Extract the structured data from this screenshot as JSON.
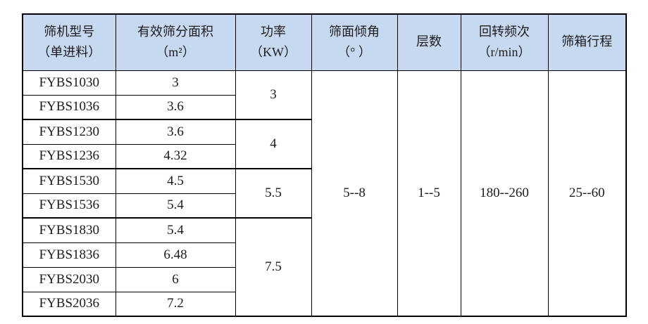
{
  "colors": {
    "header_bg": "#c6d9f0",
    "border": "#000000",
    "text": "#1c1c1c",
    "page_bg": "#ffffff"
  },
  "table": {
    "headers": [
      {
        "line1": "筛机型号",
        "line2": "（单进料）"
      },
      {
        "line1": "有效筛分面积",
        "line2": "（m²）"
      },
      {
        "line1": "功率",
        "line2": "（KW）"
      },
      {
        "line1": "筛面倾角",
        "line2": "（° ）"
      },
      {
        "line1": "层数",
        "line2": ""
      },
      {
        "line1": "回转频次",
        "line2": "（r/min）"
      },
      {
        "line1": "筛箱行程",
        "line2": ""
      }
    ],
    "rows": [
      {
        "model": "FYBS1030",
        "area": "3"
      },
      {
        "model": "FYBS1036",
        "area": "3.6"
      },
      {
        "model": "FYBS1230",
        "area": "3.6"
      },
      {
        "model": "FYBS1236",
        "area": "4.32"
      },
      {
        "model": "FYBS1530",
        "area": "4.5"
      },
      {
        "model": "FYBS1536",
        "area": "5.4"
      },
      {
        "model": "FYBS1830",
        "area": "5.4"
      },
      {
        "model": "FYBS1836",
        "area": "6.48"
      },
      {
        "model": "FYBS2030",
        "area": "6"
      },
      {
        "model": "FYBS2036",
        "area": "7.2"
      }
    ],
    "power_groups": [
      {
        "value": "3",
        "row_span": 2
      },
      {
        "value": "4",
        "row_span": 2
      },
      {
        "value": "5.5",
        "row_span": 2
      },
      {
        "value": "7.5",
        "row_span": 4
      }
    ],
    "shared": {
      "screen_incline": "5--8",
      "layers": "1--5",
      "rotation_frequency": "180--260",
      "box_stroke": "25--60"
    }
  }
}
